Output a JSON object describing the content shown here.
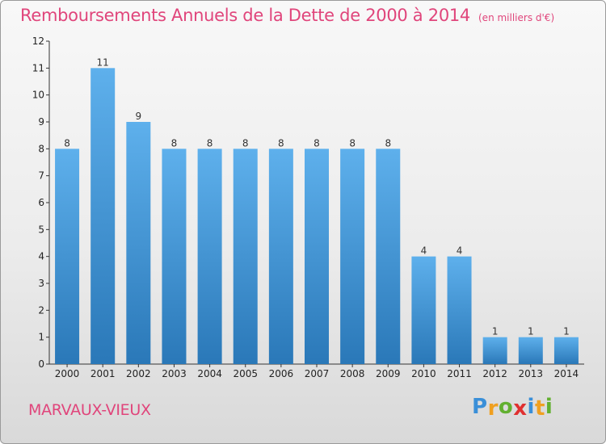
{
  "chart_data": {
    "type": "bar",
    "title": "Remboursements Annuels de la Dette de 2000 à 2014",
    "unit_note": "(en milliers d'€)",
    "categories": [
      "2000",
      "2001",
      "2002",
      "2003",
      "2004",
      "2005",
      "2006",
      "2007",
      "2008",
      "2009",
      "2010",
      "2011",
      "2012",
      "2013",
      "2014"
    ],
    "values": [
      8,
      11,
      9,
      8,
      8,
      8,
      8,
      8,
      8,
      8,
      4,
      4,
      1,
      1,
      1
    ],
    "ylim": [
      0,
      12
    ],
    "yticks": [
      0,
      1,
      2,
      3,
      4,
      5,
      6,
      7,
      8,
      9,
      10,
      11,
      12
    ],
    "grid": false,
    "bar_color_top": "#5eb0ec",
    "bar_color_bottom": "#2a78b8"
  },
  "footer": {
    "city": "MARVAUX-VIEUX",
    "logo_letters": [
      "P",
      "r",
      "o",
      "x",
      "i",
      "t",
      "i"
    ],
    "logo_colors": [
      "#3a8fd8",
      "#f0a020",
      "#62b030",
      "#e03030",
      "#3a8fd8",
      "#f0a020",
      "#62b030"
    ]
  },
  "colors": {
    "accent": "#e0457b"
  }
}
